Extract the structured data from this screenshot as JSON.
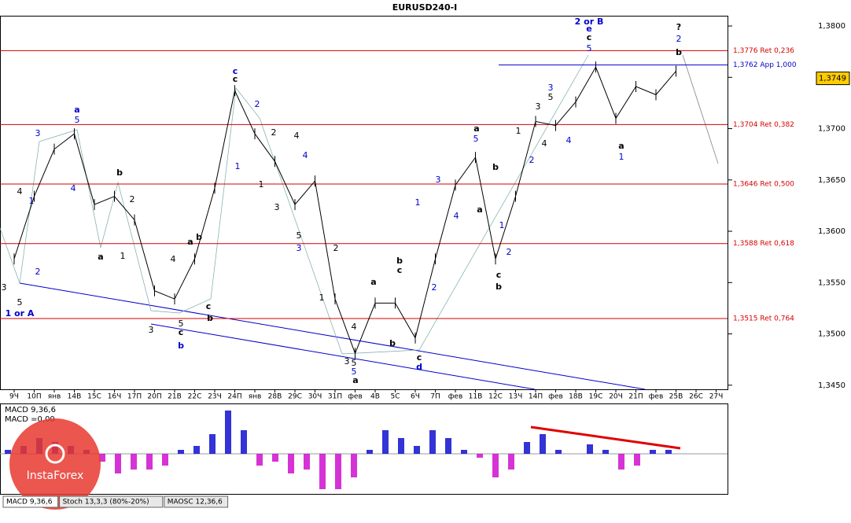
{
  "chart_data": {
    "type": "line",
    "title": "EURUSD240-I",
    "color": "#000000",
    "categories": [
      "9Ч",
      "10П",
      "янв",
      "14В",
      "15С",
      "16Ч",
      "17П",
      "20П",
      "21В",
      "22С",
      "23Ч",
      "24П",
      "янв",
      "28В",
      "29С",
      "30Ч",
      "31П",
      "фев",
      "4В",
      "5С",
      "6Ч",
      "7П",
      "фев",
      "11В",
      "12С",
      "13Ч",
      "14П",
      "фев",
      "18В",
      "19С",
      "20Ч",
      "21П",
      "фев",
      "25В",
      "26С",
      "27Ч"
    ],
    "values": [
      1.3573,
      1.3634,
      1.368,
      1.3695,
      1.3626,
      1.3634,
      1.3611,
      1.3542,
      1.3534,
      1.3573,
      1.3642,
      1.3737,
      1.3695,
      1.3668,
      1.3626,
      1.3649,
      1.3534,
      1.3481,
      1.353,
      1.353,
      1.3496,
      1.3573,
      1.3645,
      1.3672,
      1.3573,
      1.3634,
      1.3707,
      1.3703,
      1.3726,
      1.376,
      1.371,
      1.3741,
      1.3733,
      1.3756,
      null,
      null
    ],
    "ylim": [
      1.3446,
      1.381
    ],
    "yticks": [
      {
        "value": 1.345,
        "label": "1,3450"
      },
      {
        "value": 1.35,
        "label": "1,3500"
      },
      {
        "value": 1.355,
        "label": "1,3550"
      },
      {
        "value": 1.36,
        "label": "1,3600"
      },
      {
        "value": 1.365,
        "label": "1,3650"
      },
      {
        "value": 1.37,
        "label": "1,3700"
      },
      {
        "value": 1.375,
        "label": "1,3750"
      },
      {
        "value": 1.38,
        "label": "1,3800"
      }
    ],
    "levels": [
      {
        "value": 1.3776,
        "label": "1,3776 Ret 0,236",
        "color": "#d40000"
      },
      {
        "value": 1.3762,
        "label": "1,3762 App 1,000",
        "color": "#0000cc"
      },
      {
        "value": 1.3704,
        "label": "1,3704 Ret 0,382",
        "color": "#d40000"
      },
      {
        "value": 1.3646,
        "label": "1,3646 Ret 0,500",
        "color": "#d40000"
      },
      {
        "value": 1.3588,
        "label": "1,3588 Ret 0,618",
        "color": "#d40000"
      },
      {
        "value": 1.3515,
        "label": "1,3515 Ret 0,764",
        "color": "#d40000"
      }
    ],
    "last_price": {
      "value": 1.3749,
      "label": "1,3749"
    },
    "annotations": [
      "1 or A",
      "5",
      "3",
      "2",
      "1",
      "4",
      "3",
      "a",
      "5",
      "4",
      "b",
      "a",
      "2",
      "1",
      "3",
      "c",
      "b",
      "5",
      "a",
      "4",
      "b",
      "c",
      "b",
      "c",
      "c",
      "2",
      "1",
      "2",
      "1",
      "3",
      "4",
      "4",
      "5",
      "3",
      "2",
      "1",
      "3",
      "5",
      "5",
      "a",
      "4",
      "a",
      "b",
      "b",
      "c",
      "c",
      "d",
      "1",
      "2",
      "3",
      "4",
      "a",
      "5",
      "a",
      "b",
      "1",
      "2",
      "c",
      "b",
      "1",
      "2",
      "3",
      "4",
      "3",
      "5",
      "4",
      "2 or B",
      "e",
      "c",
      "5",
      "a",
      "1",
      "?",
      "2",
      "b"
    ],
    "macd": {
      "labels": [
        "MACD 9,36,6",
        "MACD =0,00"
      ],
      "color": "#0000cc",
      "neg_color": "#cc00cc",
      "ylim": [
        -51,
        62
      ],
      "values": [
        5,
        10,
        20,
        15,
        10,
        5,
        -10,
        -25,
        -20,
        -20,
        -15,
        5,
        10,
        25,
        55,
        30,
        -15,
        -10,
        -25,
        -20,
        -45,
        -45,
        -30,
        5,
        30,
        20,
        10,
        30,
        20,
        5,
        -5,
        -30,
        -20,
        15,
        25,
        5,
        0,
        12,
        5,
        -20,
        -15,
        5,
        5,
        0
      ]
    },
    "tabs": [
      "MACD 9,36,6",
      "Stoch 13,3,3 (80%-20%)",
      "MAOSC 12,36,6"
    ],
    "watermark": "InstaForex"
  }
}
